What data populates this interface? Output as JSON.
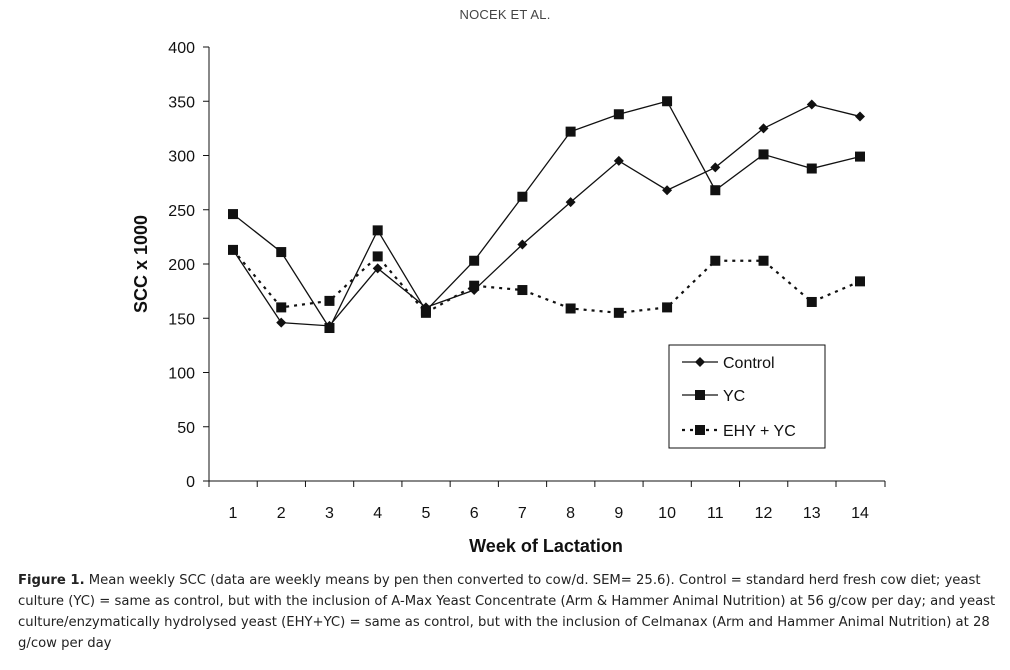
{
  "header": {
    "running_head": "NOCEK ET AL."
  },
  "caption": {
    "label": "Figure 1.",
    "text": " Mean weekly SCC (data are weekly means by pen then converted to cow/d. SEM= 25.6). Control = standard herd fresh cow diet; yeast culture (YC) = same as control, but with the inclusion of A-Max Yeast Concentrate (Arm & Hammer Animal Nutrition) at 56 g/cow per day; and yeast culture/enzymatically hydrolysed yeast (EHY+YC) = same as control, but with the inclusion of Celmanax (Arm and Hammer Animal Nutrition) at 28 g/cow per day"
  },
  "chart_data": {
    "type": "line",
    "title": "",
    "xlabel": "Week of Lactation",
    "ylabel": "SCC x 1000",
    "x": [
      1,
      2,
      3,
      4,
      5,
      6,
      7,
      8,
      9,
      10,
      11,
      12,
      13,
      14
    ],
    "ylim": [
      0,
      400
    ],
    "yticks": [
      0,
      50,
      100,
      150,
      200,
      250,
      300,
      350,
      400
    ],
    "grid": false,
    "legend_position": "bottom-right",
    "series": [
      {
        "name": "Control",
        "marker": "diamond",
        "line": "solid",
        "values": [
          213,
          146,
          143,
          196,
          160,
          176,
          218,
          257,
          295,
          268,
          289,
          325,
          347,
          336
        ]
      },
      {
        "name": "YC",
        "marker": "square",
        "line": "solid",
        "values": [
          246,
          211,
          141,
          231,
          157,
          203,
          262,
          322,
          338,
          350,
          268,
          301,
          288,
          299
        ]
      },
      {
        "name": "EHY + YC",
        "marker": "square",
        "line": "dotted",
        "values": [
          213,
          160,
          166,
          207,
          155,
          180,
          176,
          159,
          155,
          160,
          203,
          203,
          165,
          184
        ]
      }
    ]
  }
}
